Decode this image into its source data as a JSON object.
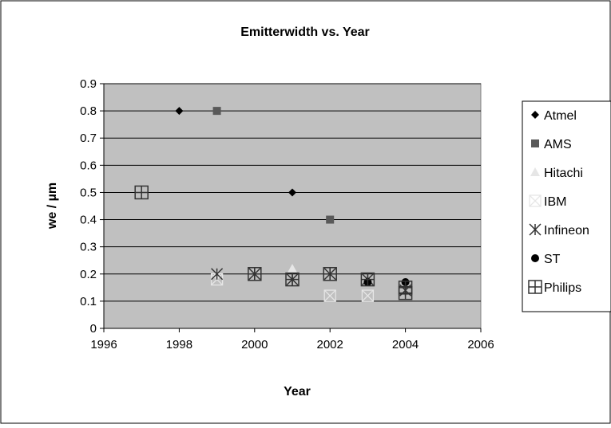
{
  "chart_data": {
    "type": "scatter",
    "title": "Emitterwidth vs. Year",
    "xlabel": "Year",
    "ylabel": "we / µm",
    "xlim": [
      1996,
      2006
    ],
    "ylim": [
      0,
      0.9
    ],
    "xticks": [
      1996,
      1998,
      2000,
      2002,
      2004,
      2006
    ],
    "yticks": [
      0,
      0.1,
      0.2,
      0.3,
      0.4,
      0.5,
      0.6,
      0.7,
      0.8,
      0.9
    ],
    "ytick_labels": [
      "0",
      "0.1",
      "0.2",
      "0.3",
      "0.4",
      "0.5",
      "0.6",
      "0.7",
      "0.8",
      "0.9"
    ],
    "grid": "horizontal",
    "plot_background": "#c0c0c0",
    "legend_position": "right",
    "series": [
      {
        "name": "Atmel",
        "marker": "diamond",
        "color": "#000000",
        "points": [
          [
            1998,
            0.8
          ],
          [
            2001,
            0.5
          ]
        ]
      },
      {
        "name": "AMS",
        "marker": "square",
        "color": "#595959",
        "points": [
          [
            1999,
            0.8
          ],
          [
            2002,
            0.4
          ]
        ]
      },
      {
        "name": "Hitachi",
        "marker": "triangle",
        "color": "#e6e6e6",
        "points": [
          [
            1999,
            0.2
          ],
          [
            2001,
            0.22
          ]
        ]
      },
      {
        "name": "IBM",
        "marker": "x-box",
        "color": "#e6e6e6",
        "points": [
          [
            1999,
            0.18
          ],
          [
            2002,
            0.12
          ],
          [
            2003,
            0.12
          ]
        ]
      },
      {
        "name": "Infineon",
        "marker": "star-box",
        "color": "#333333",
        "points": [
          [
            1999,
            0.2
          ],
          [
            2000,
            0.2
          ],
          [
            2001,
            0.18
          ],
          [
            2002,
            0.2
          ],
          [
            2003,
            0.18
          ],
          [
            2004,
            0.14
          ]
        ]
      },
      {
        "name": "ST",
        "marker": "circle",
        "color": "#000000",
        "points": [
          [
            2003,
            0.17
          ],
          [
            2004,
            0.17
          ]
        ]
      },
      {
        "name": "Philips",
        "marker": "plus-box",
        "color": "#333333",
        "points": [
          [
            1997,
            0.5
          ],
          [
            2000,
            0.2
          ],
          [
            2001,
            0.18
          ],
          [
            2002,
            0.2
          ],
          [
            2003,
            0.18
          ],
          [
            2004,
            0.15
          ],
          [
            2004,
            0.13
          ]
        ]
      }
    ]
  }
}
